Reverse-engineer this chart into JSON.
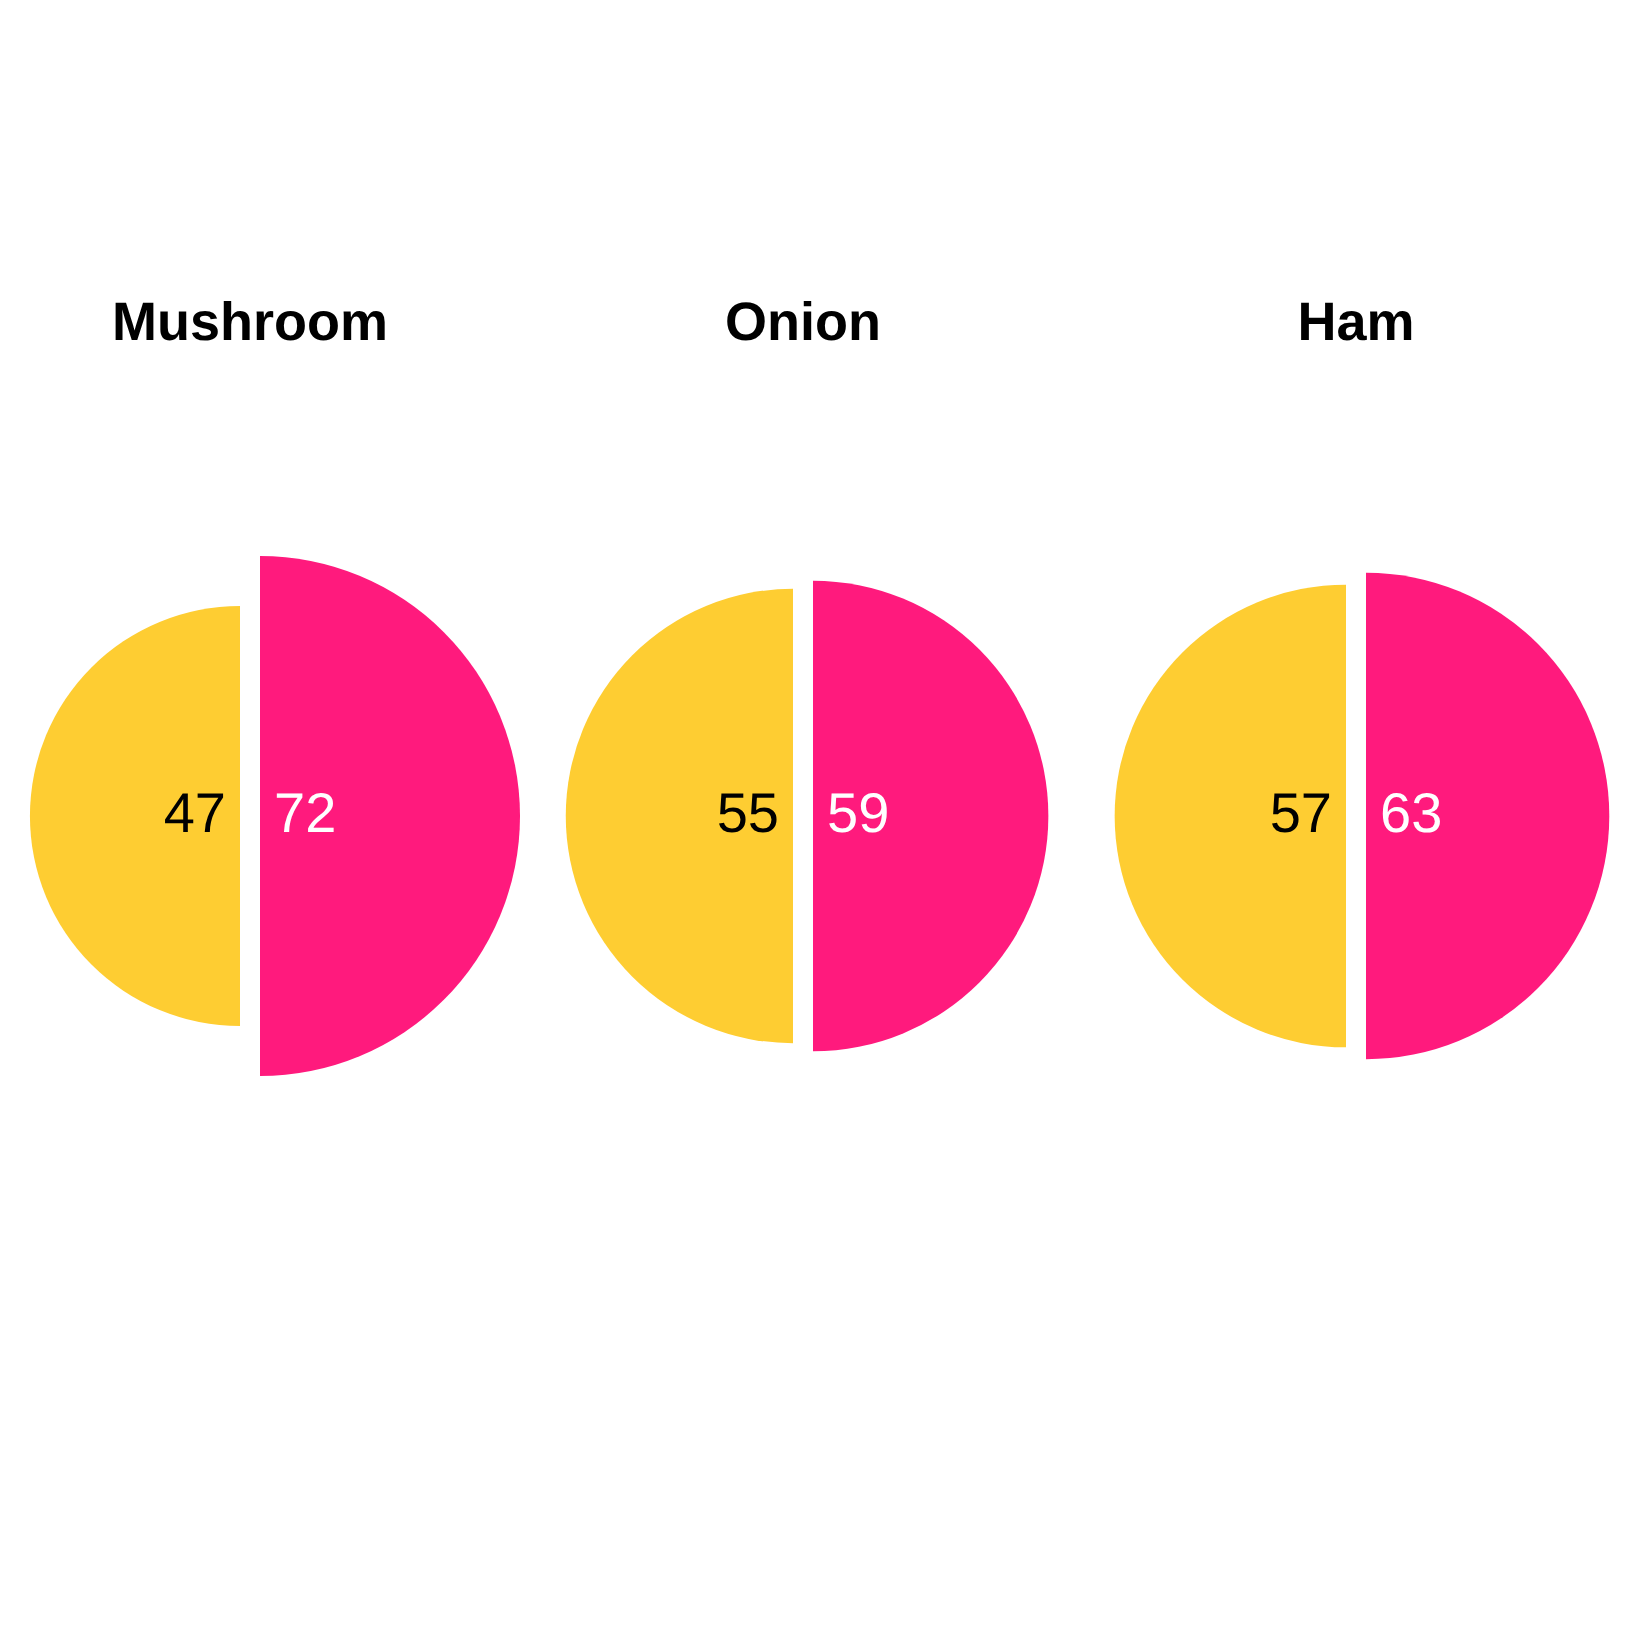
{
  "chart_data": {
    "type": "other",
    "categories": [
      "Mushroom",
      "Onion",
      "Ham"
    ],
    "series": [
      {
        "color": "#fecd32",
        "values": [
          47,
          55,
          57
        ]
      },
      {
        "color": "#ff1a7d",
        "values": [
          72,
          59,
          63
        ]
      }
    ],
    "data_labels": true
  }
}
